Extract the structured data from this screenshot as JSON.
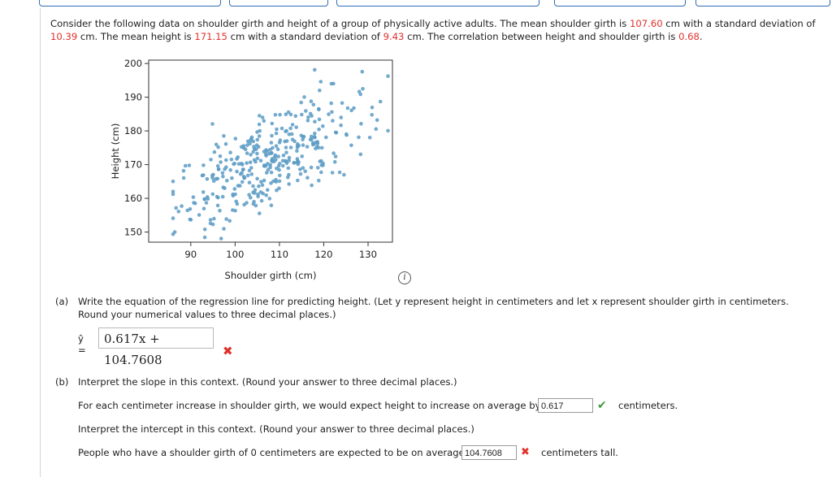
{
  "intro": {
    "p1": "Consider the following data on shoulder girth and height of a group of physically active adults. The mean shoulder girth is ",
    "mean_girth": "107.60",
    "p2": " cm with a standard deviation of ",
    "sd_girth": "10.39",
    "p3": " cm. The mean height is ",
    "mean_height": "171.15",
    "p4": " cm with a standard deviation of ",
    "sd_height": "9.43",
    "p5": " cm. The correlation between height and shoulder girth is ",
    "correlation": "0.68",
    "p6": "."
  },
  "chart_data": {
    "type": "scatter",
    "xlabel": "Shoulder girth (cm)",
    "ylabel": "Height (cm)",
    "xlim": [
      80.5,
      135.5
    ],
    "ylim": [
      147,
      201
    ],
    "xticks": [
      90,
      100,
      110,
      120,
      130
    ],
    "yticks": [
      150,
      160,
      170,
      180,
      190,
      200
    ],
    "point_color": "#5a9bc4",
    "grid": false,
    "series": [
      {
        "points": []
      }
    ]
  },
  "info_icon": "info-icon",
  "part_a": {
    "label": "(a)",
    "question": "Write the equation of the regression line for predicting height. (Let y represent height in centimeters and let x represent shoulder girth in centimeters. Round your numerical values to three decimal places.)",
    "yhat_label": "ŷ =",
    "answer": "0.617x + 104.7608",
    "status": "incorrect"
  },
  "part_b": {
    "label": "(b)",
    "q1": "Interpret the slope in this context. (Round your answer to three decimal places.)",
    "slope_prefix": "For each centimeter increase in shoulder girth, we would expect height to increase on average by",
    "slope_value": "0.617",
    "slope_status": "correct",
    "slope_suffix": "centimeters.",
    "q2": "Interpret the intercept in this context. (Round your answer to three decimal places.)",
    "intercept_prefix": "People who have a shoulder girth of 0 centimeters are expected to be on average",
    "intercept_value": "104.7608",
    "intercept_status": "incorrect",
    "intercept_suffix": "centimeters tall."
  }
}
